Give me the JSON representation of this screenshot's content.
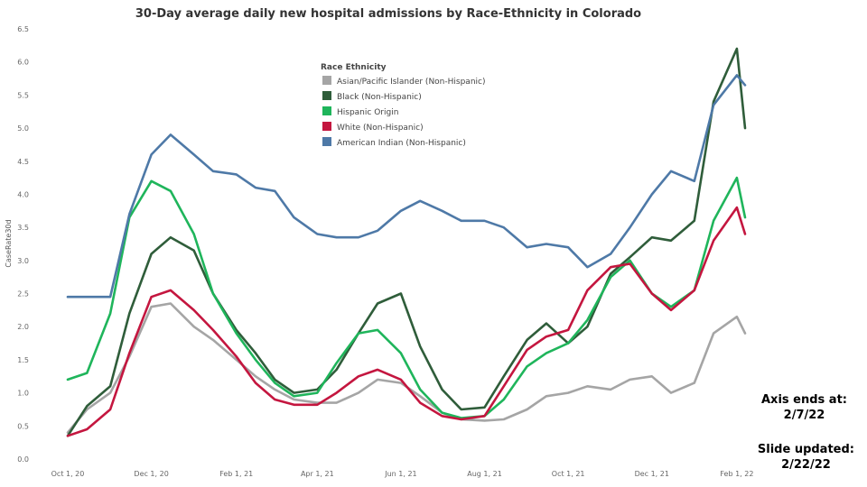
{
  "chart_data": {
    "type": "line",
    "title": "30-Day average daily new hospital admissions by Race-Ethnicity in Colorado",
    "ylabel": "CaseRate30d",
    "ylim": [
      0,
      6.5
    ],
    "yticks": [
      "0.0",
      "0.5",
      "1.0",
      "1.5",
      "2.0",
      "2.5",
      "3.0",
      "3.5",
      "4.0",
      "4.5",
      "5.0",
      "5.5",
      "6.0",
      "6.5"
    ],
    "xticks": [
      "Oct 1, 20",
      "Dec 1, 20",
      "Feb 1, 21",
      "Apr 1, 21",
      "Jun 1, 21",
      "Aug 1, 21",
      "Oct 1, 21",
      "Dec 1, 21",
      "Feb 1, 22"
    ],
    "x": [
      "Oct 1, 20",
      "Oct 15, 20",
      "Nov 1, 20",
      "Nov 15, 20",
      "Dec 1, 20",
      "Dec 15, 20",
      "Jan 1, 21",
      "Jan 15, 21",
      "Feb 1, 21",
      "Feb 15, 21",
      "Mar 1, 21",
      "Mar 15, 21",
      "Apr 1, 21",
      "Apr 15, 21",
      "May 1, 21",
      "May 15, 21",
      "Jun 1, 21",
      "Jun 15, 21",
      "Jul 1, 21",
      "Jul 15, 21",
      "Aug 1, 21",
      "Aug 15, 21",
      "Sep 1, 21",
      "Sep 15, 21",
      "Oct 1, 21",
      "Oct 15, 21",
      "Nov 1, 21",
      "Nov 15, 21",
      "Dec 1, 21",
      "Dec 15, 21",
      "Jan 1, 22",
      "Jan 15, 22",
      "Feb 1, 22",
      "Feb 7, 22"
    ],
    "legend_title": "Race Ethnicity",
    "legend_position": "top-center",
    "grid": false,
    "series": [
      {
        "name": "Asian/Pacific Islander (Non-Hispanic)",
        "color": "#a5a5a5",
        "values": [
          0.4,
          0.75,
          1.0,
          1.55,
          2.3,
          2.35,
          2.0,
          1.8,
          1.5,
          1.25,
          1.05,
          0.9,
          0.85,
          0.85,
          1.0,
          1.2,
          1.15,
          0.95,
          0.7,
          0.6,
          0.58,
          0.6,
          0.75,
          0.95,
          1.0,
          1.1,
          1.05,
          1.2,
          1.25,
          1.0,
          1.15,
          1.9,
          2.15,
          1.9
        ]
      },
      {
        "name": "Black (Non-Hispanic)",
        "color": "#2f5d3a",
        "values": [
          0.35,
          0.8,
          1.1,
          2.2,
          3.1,
          3.35,
          3.15,
          2.5,
          1.95,
          1.6,
          1.2,
          1.0,
          1.05,
          1.35,
          1.9,
          2.35,
          2.5,
          1.7,
          1.05,
          0.75,
          0.78,
          1.25,
          1.8,
          2.05,
          1.75,
          2.0,
          2.8,
          3.05,
          3.35,
          3.3,
          3.6,
          5.4,
          6.2,
          5.0
        ]
      },
      {
        "name": "Hispanic Origin",
        "color": "#1fb55b",
        "values": [
          1.2,
          1.3,
          2.2,
          3.65,
          4.2,
          4.05,
          3.4,
          2.5,
          1.9,
          1.5,
          1.15,
          0.95,
          1.0,
          1.45,
          1.9,
          1.95,
          1.6,
          1.05,
          0.7,
          0.62,
          0.65,
          0.9,
          1.4,
          1.6,
          1.75,
          2.1,
          2.75,
          3.0,
          2.5,
          2.3,
          2.55,
          3.6,
          4.25,
          3.65
        ]
      },
      {
        "name": "White (Non-Hispanic)",
        "color": "#c4163f",
        "values": [
          0.35,
          0.45,
          0.75,
          1.6,
          2.45,
          2.55,
          2.25,
          1.95,
          1.55,
          1.15,
          0.9,
          0.82,
          0.82,
          1.0,
          1.25,
          1.35,
          1.2,
          0.85,
          0.65,
          0.6,
          0.65,
          1.1,
          1.65,
          1.85,
          1.95,
          2.55,
          2.9,
          2.95,
          2.5,
          2.25,
          2.55,
          3.3,
          3.8,
          3.4
        ]
      },
      {
        "name": "American Indian (Non-Hispanic)",
        "color": "#4e79a7",
        "values": [
          2.45,
          2.45,
          2.45,
          3.7,
          4.6,
          4.9,
          4.6,
          4.35,
          4.3,
          4.1,
          4.05,
          3.65,
          3.4,
          3.35,
          3.35,
          3.45,
          3.75,
          3.9,
          3.75,
          3.6,
          3.6,
          3.5,
          3.2,
          3.25,
          3.2,
          2.9,
          3.1,
          3.5,
          4.0,
          4.35,
          4.2,
          5.35,
          5.8,
          5.65
        ]
      }
    ]
  },
  "notes": {
    "axis_ends_label": "Axis ends at:",
    "axis_ends_value": "2/7/22",
    "slide_updated_label": "Slide updated:",
    "slide_updated_value": "2/22/22"
  }
}
